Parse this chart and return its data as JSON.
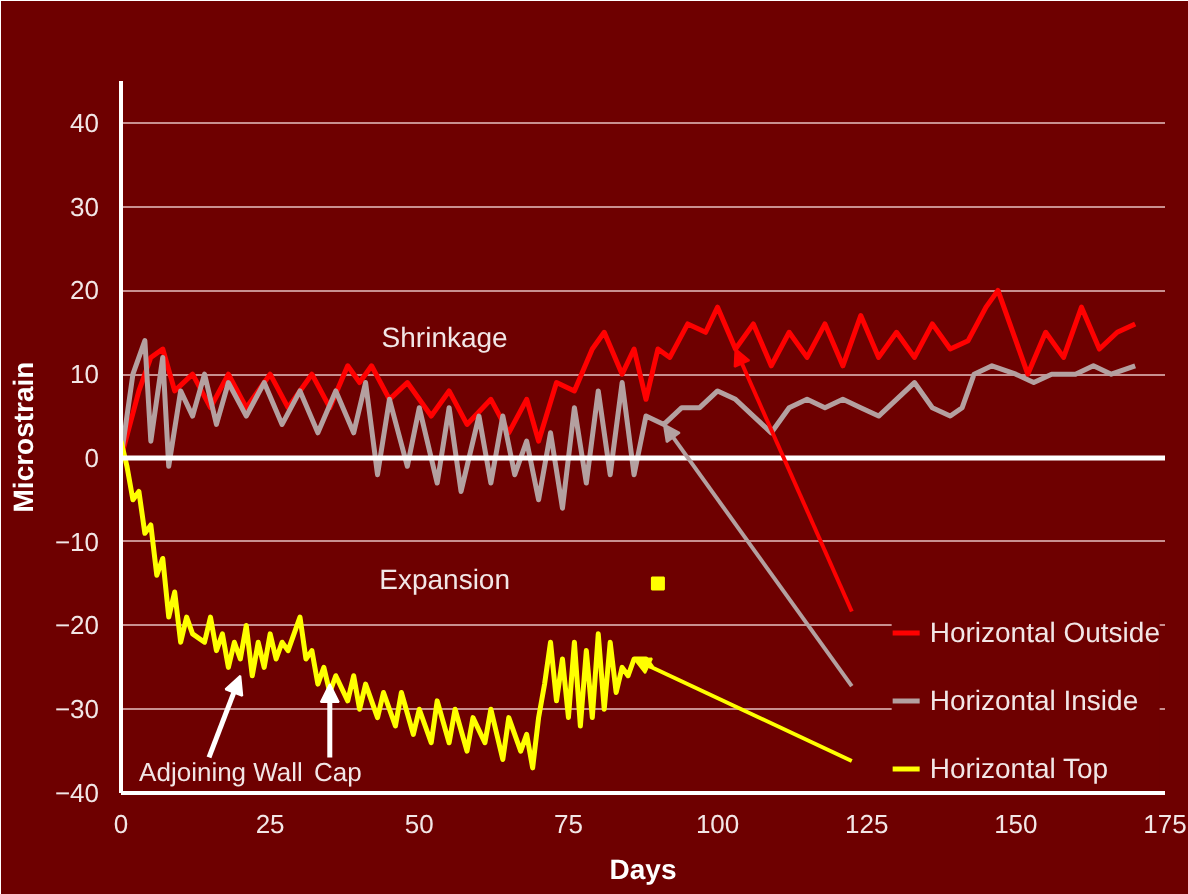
{
  "chart_data": {
    "type": "line",
    "xlabel": "Days",
    "ylabel": "Microstrain",
    "annotations": [
      "Shrinkage",
      "Expansion",
      {
        "text": "Adjoining Wall",
        "x": 20,
        "y": -26
      },
      {
        "text": "Cap",
        "x": 35,
        "y": -27
      }
    ],
    "xlim": [
      0,
      175
    ],
    "xticks": [
      0,
      25,
      50,
      75,
      100,
      125,
      150,
      175
    ],
    "ylim": [
      -40,
      45
    ],
    "yticks": [
      -40,
      -30,
      -20,
      -10,
      0,
      10,
      20,
      30,
      40
    ],
    "ref_lines": [
      {
        "axis": "y",
        "value": 0,
        "color": "#ffffff"
      }
    ],
    "grid": "y",
    "legend": "bottom right",
    "line_style": "solid",
    "series": [
      {
        "name": "Horizontal Outside",
        "color": "#ff0000",
        "x": [
          0,
          3,
          5,
          7,
          9,
          12,
          15,
          18,
          21,
          25,
          28,
          32,
          35,
          38,
          40,
          42,
          45,
          48,
          52,
          55,
          58,
          62,
          65,
          68,
          70,
          73,
          76,
          79,
          81,
          84,
          86,
          88,
          90,
          92,
          95,
          98,
          100,
          103,
          106,
          109,
          112,
          115,
          118,
          121,
          124,
          127,
          130,
          133,
          136,
          139,
          142,
          145,
          147,
          150,
          152,
          155,
          158,
          161,
          164,
          167,
          170
        ],
        "values": [
          0,
          8,
          12,
          13,
          8,
          10,
          6,
          10,
          6,
          10,
          6,
          10,
          6,
          11,
          9,
          11,
          7,
          9,
          5,
          8,
          4,
          7,
          3,
          7,
          2,
          9,
          8,
          13,
          15,
          10,
          13,
          7,
          13,
          12,
          16,
          15,
          18,
          13,
          16,
          11,
          15,
          12,
          16,
          11,
          17,
          12,
          15,
          12,
          16,
          13,
          14,
          18,
          20,
          14,
          10,
          15,
          12,
          18,
          13,
          15,
          16
        ]
      },
      {
        "name": "Horizontal Inside",
        "color": "#b4a0a0",
        "x": [
          0,
          2,
          4,
          5,
          7,
          8,
          10,
          12,
          14,
          16,
          18,
          21,
          24,
          27,
          30,
          33,
          36,
          39,
          41,
          43,
          45,
          48,
          50,
          53,
          55,
          57,
          60,
          62,
          64,
          66,
          68,
          70,
          72,
          74,
          76,
          78,
          80,
          82,
          84,
          86,
          88,
          91,
          94,
          97,
          100,
          103,
          106,
          109,
          112,
          115,
          118,
          121,
          124,
          127,
          130,
          133,
          136,
          139,
          141,
          143,
          146,
          150,
          153,
          156,
          160,
          163,
          166,
          170
        ],
        "values": [
          0,
          10,
          14,
          2,
          12,
          -1,
          8,
          5,
          10,
          4,
          9,
          5,
          9,
          4,
          8,
          3,
          8,
          3,
          9,
          -2,
          7,
          -1,
          6,
          -3,
          6,
          -4,
          5,
          -3,
          5,
          -2,
          2,
          -5,
          3,
          -6,
          6,
          -3,
          8,
          -2,
          9,
          -2,
          5,
          4,
          6,
          6,
          8,
          7,
          5,
          3,
          6,
          7,
          6,
          7,
          6,
          5,
          7,
          9,
          6,
          5,
          6,
          10,
          11,
          10,
          9,
          10,
          10,
          11,
          10,
          11
        ]
      },
      {
        "name": "Horizontal Top",
        "color": "#ffff00",
        "x": [
          0,
          1,
          2,
          3,
          4,
          5,
          6,
          7,
          8,
          9,
          10,
          11,
          12,
          14,
          15,
          16,
          17,
          18,
          19,
          20,
          21,
          22,
          23,
          24,
          25,
          26,
          27,
          28,
          29,
          30,
          31,
          32,
          33,
          34,
          35,
          36,
          38,
          39,
          40,
          41,
          43,
          44,
          46,
          47,
          49,
          50,
          52,
          53,
          55,
          56,
          58,
          59,
          61,
          62,
          64,
          65,
          67,
          68,
          69,
          70,
          71,
          72,
          73,
          74,
          75,
          76,
          77,
          78,
          79,
          80,
          81,
          82,
          83,
          84,
          85,
          86,
          88,
          89
        ],
        "values": [
          2,
          -1,
          -5,
          -4,
          -9,
          -8,
          -14,
          -12,
          -19,
          -16,
          -22,
          -19,
          -21,
          -22,
          -19,
          -23,
          -21,
          -25,
          -22,
          -24,
          -20,
          -26,
          -22,
          -25,
          -21,
          -24,
          -22,
          -23,
          -21,
          -19,
          -24,
          -23,
          -27,
          -25,
          -28,
          -26,
          -29,
          -26,
          -30,
          -27,
          -31,
          -28,
          -32,
          -28,
          -33,
          -30,
          -34,
          -29,
          -34,
          -30,
          -35,
          -31,
          -34,
          -30,
          -36,
          -31,
          -35,
          -33,
          -37,
          -31,
          -27,
          -22,
          -29,
          -24,
          -31,
          -22,
          -32,
          -23,
          -31,
          -21,
          -30,
          -22,
          -28,
          -25,
          -26,
          -24,
          -24,
          -25
        ]
      },
      {
        "type": "scatter",
        "marker": "square",
        "color": "#ffff00",
        "x": [
          90
        ],
        "values": [
          -15
        ]
      }
    ]
  }
}
